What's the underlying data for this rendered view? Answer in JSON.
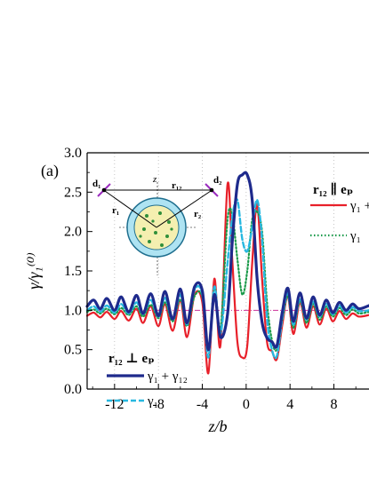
{
  "chart_data": {
    "type": "line",
    "panel_label": "(a)",
    "xlabel": "z/b",
    "ylabel": "γ/γ₁⁽⁰⁾",
    "xlim": [
      -14.5,
      11.2
    ],
    "ylim": [
      0.0,
      3.0
    ],
    "xticks": [
      -12,
      -8,
      -4,
      0,
      4,
      8
    ],
    "xtick_labels": [
      "-12",
      "-8",
      "-4",
      "0",
      "4",
      "8"
    ],
    "yticks": [
      0.0,
      0.5,
      1.0,
      1.5,
      2.0,
      2.5,
      3.0
    ],
    "ytick_labels": [
      "0.0",
      "0.5",
      "1.0",
      "1.5",
      "2.0",
      "2.5",
      "3.0"
    ],
    "grid": "vertical dotted",
    "reference_line": {
      "y": 1.0,
      "color": "#cc3399",
      "style": "dash-dot"
    },
    "legends": {
      "parallel": {
        "header": "r₁₂ ∥ eₚ",
        "entries": [
          {
            "label": "γ₁ +",
            "series": "par_sum"
          },
          {
            "label": "γ₁",
            "series": "par_single"
          }
        ]
      },
      "perpendicular": {
        "header": "r₁₂ ⊥ eₚ",
        "entries": [
          {
            "label": "γ₁ + γ₁₂",
            "series": "perp_sum"
          },
          {
            "label": "γ₁",
            "series": "perp_single"
          }
        ]
      }
    },
    "inset": {
      "labels": [
        "d₁",
        "d₂",
        "z",
        "r₁₂",
        "r₁",
        "r₂"
      ]
    },
    "series": [
      {
        "id": "par_sum",
        "color": "#e8202a",
        "style": "solid",
        "width": 2.2,
        "x": [
          -14.5,
          -13.9,
          -13.3,
          -12.7,
          -12.0,
          -11.4,
          -10.7,
          -10.0,
          -9.4,
          -8.7,
          -8.0,
          -7.4,
          -6.7,
          -6.0,
          -5.4,
          -4.7,
          -4.0,
          -3.45,
          -2.9,
          -2.35,
          -1.7,
          -1.25,
          -0.8,
          -0.35,
          0.1,
          0.55,
          1.0,
          1.45,
          1.9,
          2.35,
          2.8,
          3.3,
          3.8,
          4.3,
          4.9,
          5.5,
          6.1,
          6.7,
          7.3,
          7.9,
          8.5,
          9.1,
          9.7,
          10.3,
          11.2
        ],
        "y": [
          0.93,
          0.97,
          0.91,
          0.98,
          0.89,
          0.99,
          0.87,
          1.02,
          0.84,
          1.05,
          0.8,
          1.08,
          0.74,
          1.13,
          0.66,
          1.2,
          1.1,
          0.2,
          1.4,
          0.55,
          2.6,
          1.6,
          0.6,
          0.4,
          0.55,
          1.6,
          2.35,
          1.4,
          0.6,
          0.48,
          0.38,
          0.82,
          1.18,
          0.7,
          1.1,
          0.78,
          1.05,
          0.82,
          1.02,
          0.86,
          0.99,
          0.89,
          0.96,
          0.92,
          0.94
        ]
      },
      {
        "id": "par_single",
        "color": "#1a9a4a",
        "style": "dotted",
        "width": 2.2,
        "x": [
          -14.5,
          -13.9,
          -13.3,
          -12.7,
          -12.0,
          -11.4,
          -10.7,
          -10.0,
          -9.4,
          -8.7,
          -8.0,
          -7.4,
          -6.7,
          -6.0,
          -5.4,
          -4.7,
          -4.0,
          -3.45,
          -2.9,
          -2.35,
          -1.7,
          -1.25,
          -0.8,
          -0.35,
          0.1,
          0.55,
          1.0,
          1.45,
          1.9,
          2.35,
          2.8,
          3.3,
          3.8,
          4.3,
          4.9,
          5.5,
          6.1,
          6.7,
          7.3,
          7.9,
          8.5,
          9.1,
          9.7,
          10.3,
          11.2
        ],
        "y": [
          0.98,
          1.01,
          0.96,
          1.02,
          0.95,
          1.03,
          0.94,
          1.05,
          0.92,
          1.07,
          0.9,
          1.1,
          0.86,
          1.14,
          0.8,
          1.18,
          1.17,
          0.5,
          1.3,
          0.75,
          2.15,
          2.2,
          1.65,
          1.2,
          1.5,
          2.15,
          2.25,
          2.0,
          1.1,
          0.62,
          0.5,
          0.88,
          1.18,
          0.78,
          1.12,
          0.84,
          1.08,
          0.88,
          1.05,
          0.92,
          1.03,
          0.94,
          1.01,
          0.96,
          0.98
        ]
      },
      {
        "id": "perp_single",
        "color": "#27b8e0",
        "style": "dashed",
        "width": 2.4,
        "x": [
          -14.5,
          -13.9,
          -13.3,
          -12.7,
          -12.0,
          -11.4,
          -10.7,
          -10.0,
          -9.4,
          -8.7,
          -8.0,
          -7.4,
          -6.7,
          -6.0,
          -5.4,
          -4.7,
          -4.0,
          -3.45,
          -2.9,
          -2.35,
          -1.7,
          -1.25,
          -0.8,
          -0.35,
          0.1,
          0.55,
          1.0,
          1.45,
          1.9,
          2.35,
          2.8,
          3.3,
          3.8,
          4.3,
          4.9,
          5.5,
          6.1,
          6.7,
          7.3,
          7.9,
          8.5,
          9.1,
          9.7,
          10.3,
          11.2
        ],
        "y": [
          1.0,
          1.05,
          0.98,
          1.06,
          0.97,
          1.08,
          0.96,
          1.1,
          0.95,
          1.13,
          0.92,
          1.16,
          0.88,
          1.2,
          0.82,
          1.26,
          1.2,
          0.4,
          1.3,
          0.7,
          1.6,
          2.2,
          2.4,
          1.9,
          1.75,
          2.05,
          2.4,
          1.9,
          0.9,
          0.5,
          0.42,
          0.9,
          1.22,
          0.82,
          1.15,
          0.88,
          1.11,
          0.92,
          1.08,
          0.95,
          1.06,
          0.97,
          1.04,
          0.99,
          1.0
        ]
      },
      {
        "id": "perp_sum",
        "color": "#1e2a8c",
        "style": "solid",
        "width": 3.2,
        "x": [
          -14.5,
          -13.9,
          -13.3,
          -12.7,
          -12.0,
          -11.4,
          -10.7,
          -10.0,
          -9.4,
          -8.7,
          -8.0,
          -7.4,
          -6.7,
          -6.0,
          -5.4,
          -4.7,
          -4.0,
          -3.45,
          -2.9,
          -2.35,
          -1.7,
          -1.25,
          -0.8,
          -0.35,
          0.1,
          0.55,
          1.0,
          1.45,
          1.9,
          2.35,
          2.8,
          3.3,
          3.8,
          4.3,
          4.9,
          5.5,
          6.1,
          6.7,
          7.3,
          7.9,
          8.5,
          9.1,
          9.7,
          10.3,
          11.2
        ],
        "y": [
          1.05,
          1.13,
          1.02,
          1.15,
          1.0,
          1.17,
          0.98,
          1.19,
          0.96,
          1.21,
          0.93,
          1.24,
          0.89,
          1.27,
          0.84,
          1.3,
          1.25,
          0.5,
          1.2,
          0.66,
          0.95,
          1.9,
          2.6,
          2.72,
          2.72,
          2.4,
          1.4,
          0.85,
          0.65,
          0.6,
          0.55,
          0.98,
          1.28,
          0.86,
          1.22,
          0.9,
          1.17,
          0.94,
          1.13,
          0.97,
          1.1,
          1.0,
          1.08,
          1.02,
          1.06
        ]
      }
    ]
  }
}
